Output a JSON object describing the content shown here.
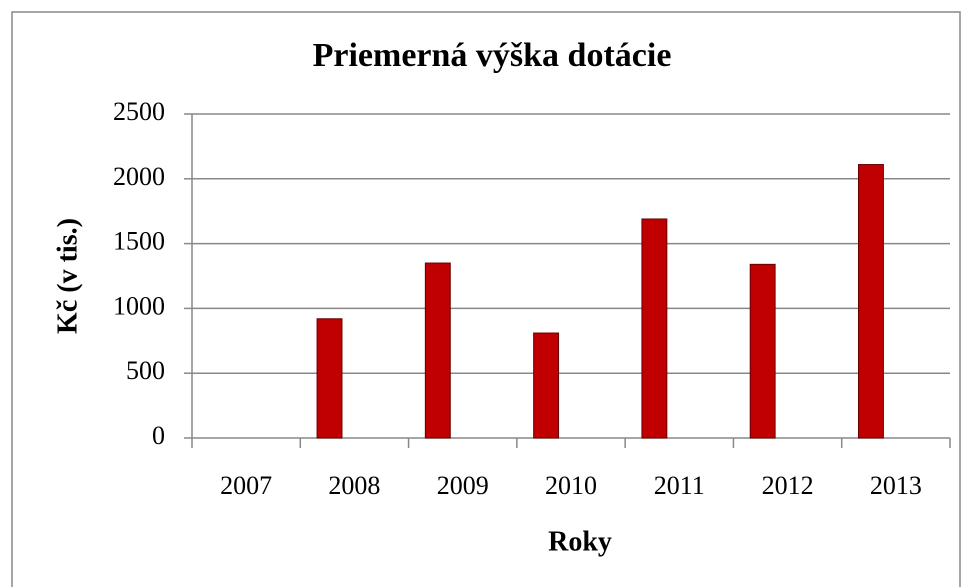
{
  "chart_data": {
    "type": "bar",
    "title": "Priemerná výška dotácie",
    "x_label": "Roky",
    "y_label": "Kč (v tis.)",
    "categories": [
      "2007",
      "2008",
      "2009",
      "2010",
      "2011",
      "2012",
      "2013"
    ],
    "values": [
      0,
      920,
      1350,
      810,
      1690,
      1340,
      2110
    ],
    "color": "#c00000",
    "ylim": [
      0,
      2500
    ],
    "yticks": [
      0,
      500,
      1000,
      1500,
      2000,
      2500
    ],
    "grid": true
  }
}
